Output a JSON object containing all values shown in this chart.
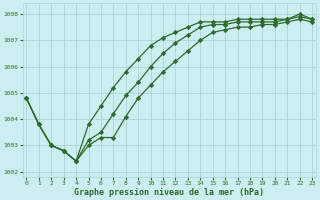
{
  "title": "Graphe pression niveau de la mer (hPa)",
  "x": [
    0,
    1,
    2,
    3,
    4,
    5,
    6,
    7,
    8,
    9,
    10,
    11,
    12,
    13,
    14,
    15,
    16,
    17,
    18,
    19,
    20,
    21,
    22,
    23
  ],
  "line1": [
    1004.8,
    1003.8,
    1003.0,
    1002.8,
    1002.4,
    1003.0,
    1003.3,
    1003.3,
    1004.1,
    1004.8,
    1005.3,
    1005.8,
    1006.2,
    1006.6,
    1007.0,
    1007.3,
    1007.4,
    1007.5,
    1007.5,
    1007.6,
    1007.6,
    1007.7,
    1007.8,
    1007.7
  ],
  "line2": [
    1004.8,
    1003.8,
    1003.0,
    1002.8,
    1002.4,
    1003.2,
    1003.5,
    1004.2,
    1004.9,
    1005.4,
    1006.0,
    1006.5,
    1006.9,
    1007.2,
    1007.5,
    1007.6,
    1007.6,
    1007.7,
    1007.7,
    1007.7,
    1007.7,
    1007.8,
    1007.9,
    1007.8
  ],
  "line3": [
    1004.8,
    1003.8,
    1003.0,
    1002.8,
    1002.4,
    1003.8,
    1004.5,
    1005.2,
    1005.8,
    1006.3,
    1006.8,
    1007.1,
    1007.3,
    1007.5,
    1007.7,
    1007.7,
    1007.7,
    1007.8,
    1007.8,
    1007.8,
    1007.8,
    1007.8,
    1008.0,
    1007.8
  ],
  "line_color": "#2d6a2d",
  "bg_color": "#cceef0",
  "grid_color": "#aad4d8",
  "ylim": [
    1001.8,
    1008.4
  ],
  "xlim": [
    -0.3,
    23.3
  ],
  "yticks": [
    1002,
    1003,
    1004,
    1005,
    1006,
    1007,
    1008
  ],
  "xticks": [
    0,
    1,
    2,
    3,
    4,
    5,
    6,
    7,
    8,
    9,
    10,
    11,
    12,
    13,
    14,
    15,
    16,
    17,
    18,
    19,
    20,
    21,
    22,
    23
  ],
  "marker": "D",
  "markersize": 2.2,
  "linewidth": 0.9
}
